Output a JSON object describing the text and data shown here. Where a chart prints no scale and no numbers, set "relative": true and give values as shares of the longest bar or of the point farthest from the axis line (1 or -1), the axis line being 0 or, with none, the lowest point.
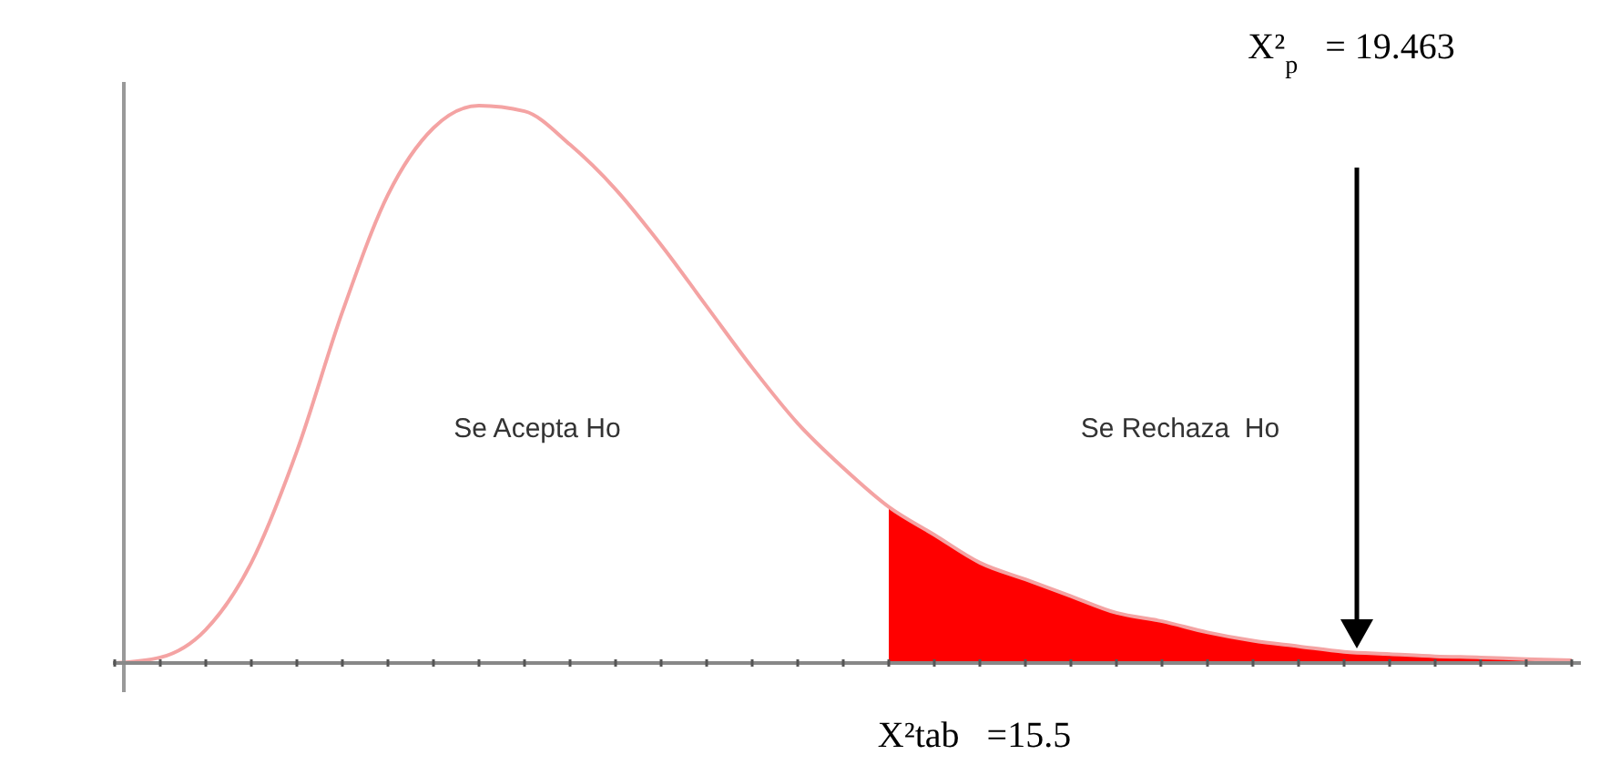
{
  "chart_data": {
    "type": "line",
    "relative": true,
    "grid": false,
    "categories": [
      null,
      null,
      null,
      null,
      null,
      null,
      null,
      null,
      null,
      null,
      null,
      null,
      null,
      null,
      null,
      null,
      null,
      null,
      null,
      null,
      null,
      null,
      null,
      null,
      null,
      null,
      null,
      null,
      null,
      null,
      null,
      null,
      null
    ],
    "series": [
      {
        "color": "#f4a3a3",
        "values": [
          0,
          0.01,
          0.06,
          0.18,
          0.38,
          0.63,
          0.84,
          0.96,
          1,
          0.99,
          0.93,
          0.85,
          0.75,
          0.64,
          0.53,
          0.43,
          0.35,
          0.28,
          0.23,
          0.18,
          0.15,
          0.12,
          0.09,
          0.075,
          0.055,
          0.04,
          0.03,
          0.02,
          0.016,
          0.012,
          0.01,
          0.007,
          0.005
        ]
      },
      {
        "type": "area",
        "color": "#ff0000",
        "values": [
          null,
          null,
          null,
          null,
          null,
          null,
          null,
          null,
          null,
          null,
          null,
          null,
          null,
          null,
          null,
          null,
          null,
          0.28,
          0.23,
          0.18,
          0.15,
          0.12,
          0.09,
          0.075,
          0.055,
          0.04,
          0.03,
          0.02,
          0.016,
          0.012,
          0.01,
          0.007,
          0.005
        ]
      }
    ],
    "annotations": [
      "Se Acepta Ho",
      "Se Rechaza  Ho",
      "X²tab   =15.5",
      "X²$_{p}$   = 19.463"
    ]
  }
}
